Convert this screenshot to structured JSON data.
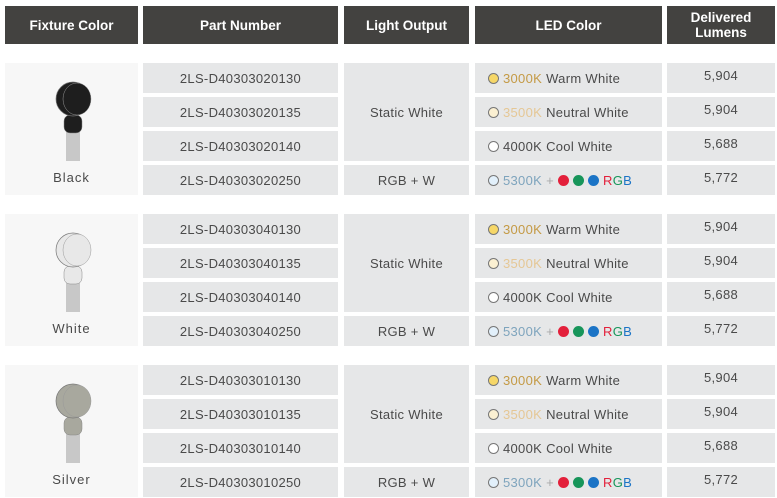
{
  "headers": [
    "Fixture Color",
    "Part Number",
    "Light Output",
    "LED Color",
    "Delivered Lumens"
  ],
  "groups": [
    {
      "fixture_color": "Black",
      "fixture_hex": "#1e1e1e",
      "rows": [
        {
          "part": "2LS-D40303020130",
          "led_temp": "3000K",
          "led_name": "Warm White",
          "lumens": "5,904"
        },
        {
          "part": "2LS-D40303020135",
          "led_temp": "3500K",
          "led_name": "Neutral White",
          "lumens": "5,904"
        },
        {
          "part": "2LS-D40303020140",
          "led_temp": "4000K",
          "led_name": "Cool White",
          "lumens": "5,688"
        },
        {
          "part": "2LS-D40303020250",
          "led_temp": "5300K",
          "led_name": "RGB",
          "lumens": "5,772"
        }
      ],
      "output_static": "Static White",
      "output_rgb": "RGB + W"
    },
    {
      "fixture_color": "White",
      "fixture_hex": "#e8e8e8",
      "rows": [
        {
          "part": "2LS-D40303040130",
          "led_temp": "3000K",
          "led_name": "Warm White",
          "lumens": "5,904"
        },
        {
          "part": "2LS-D40303040135",
          "led_temp": "3500K",
          "led_name": "Neutral White",
          "lumens": "5,904"
        },
        {
          "part": "2LS-D40303040140",
          "led_temp": "4000K",
          "led_name": "Cool White",
          "lumens": "5,688"
        },
        {
          "part": "2LS-D40303040250",
          "led_temp": "5300K",
          "led_name": "RGB",
          "lumens": "5,772"
        }
      ],
      "output_static": "Static White",
      "output_rgb": "RGB + W"
    },
    {
      "fixture_color": "Silver",
      "fixture_hex": "#a8a89e",
      "rows": [
        {
          "part": "2LS-D40303010130",
          "led_temp": "3000K",
          "led_name": "Warm White",
          "lumens": "5,904"
        },
        {
          "part": "2LS-D40303010135",
          "led_temp": "3500K",
          "led_name": "Neutral White",
          "lumens": "5,904"
        },
        {
          "part": "2LS-D40303010140",
          "led_temp": "4000K",
          "led_name": "Cool White",
          "lumens": "5,688"
        },
        {
          "part": "2LS-D40303010250",
          "led_temp": "5300K",
          "led_name": "RGB",
          "lumens": "5,772"
        }
      ],
      "output_static": "Static White",
      "output_rgb": "RGB + W"
    }
  ],
  "plus": "+",
  "led_colors": {
    "3000K": {
      "text": "#c49a45",
      "dot": "#f6d768"
    },
    "3500K": {
      "text": "#e5c795",
      "dot": "#fbf0d2"
    },
    "4000K": {
      "text": "#4a4a4a",
      "dot": "#ffffff"
    },
    "5300K": {
      "text": "#7ea4bd",
      "dot": "#e2f0fb"
    }
  },
  "rgb_dots": [
    "#e3203b",
    "#17955a",
    "#1b74c6"
  ]
}
